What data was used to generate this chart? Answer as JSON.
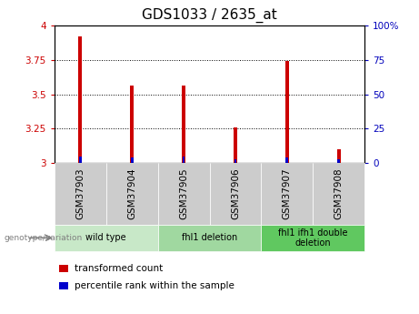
{
  "title": "GDS1033 / 2635_at",
  "samples": [
    "GSM37903",
    "GSM37904",
    "GSM37905",
    "GSM37906",
    "GSM37907",
    "GSM37908"
  ],
  "red_values": [
    3.92,
    3.56,
    3.56,
    3.26,
    3.74,
    3.1
  ],
  "blue_percentile": [
    5,
    4,
    5,
    3,
    4,
    3
  ],
  "ylim_left": [
    3.0,
    4.0
  ],
  "ylim_right": [
    0,
    100
  ],
  "yticks_left": [
    3.0,
    3.25,
    3.5,
    3.75,
    4.0
  ],
  "yticks_right": [
    0,
    25,
    50,
    75,
    100
  ],
  "ytick_labels_left": [
    "3",
    "3.25",
    "3.5",
    "3.75",
    "4"
  ],
  "ytick_labels_right": [
    "0",
    "25",
    "50",
    "75",
    "100%"
  ],
  "groups": [
    {
      "label": "wild type",
      "start": 0,
      "end": 2,
      "color": "#c8e8c8"
    },
    {
      "label": "fhl1 deletion",
      "start": 2,
      "end": 4,
      "color": "#a0d8a0"
    },
    {
      "label": "fhl1 ifh1 double\ndeletion",
      "start": 4,
      "end": 6,
      "color": "#60c860"
    }
  ],
  "sample_bg_color": "#cccccc",
  "legend_red": "transformed count",
  "legend_blue": "percentile rank within the sample",
  "genotype_label": "genotype/variation",
  "red_bar_width": 0.07,
  "blue_bar_width": 0.05,
  "red_color": "#cc0000",
  "blue_color": "#0000cc",
  "left_tick_color": "#cc0000",
  "right_tick_color": "#0000bb",
  "title_fontsize": 11,
  "tick_fontsize": 7.5,
  "label_fontsize": 7.5
}
